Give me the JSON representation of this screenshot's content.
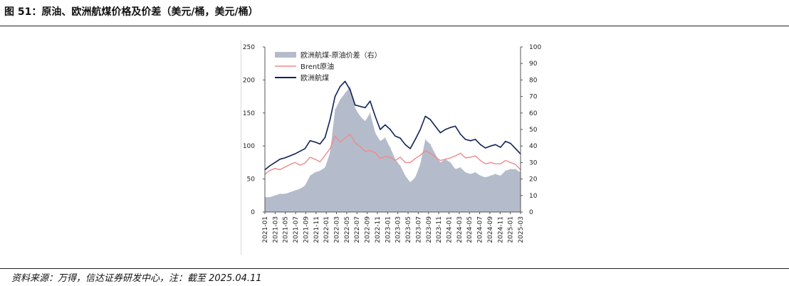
{
  "header": {
    "title": "图 51：原油、欧洲航煤价格及价差（美元/桶，美元/桶）"
  },
  "footer": {
    "source": "资料来源：万得，信达证券研发中心，注：截至 2025.04.11"
  },
  "chart_data": {
    "type": "line",
    "title": "原油、欧洲航煤价格及价差（美元/桶，美元/桶）",
    "left_axis": {
      "ylim": [
        0,
        250
      ],
      "ticks": [
        "0",
        "50",
        "100",
        "150",
        "200",
        "250"
      ]
    },
    "right_axis": {
      "ylim": [
        0,
        100
      ],
      "ticks": [
        "0",
        "10",
        "20",
        "30",
        "40",
        "50",
        "60",
        "70",
        "80",
        "90",
        "100"
      ]
    },
    "x_ticks": [
      "2021-01",
      "2021-03",
      "2021-05",
      "2021-07",
      "2021-09",
      "2021-11",
      "2022-01",
      "2022-03",
      "2022-05",
      "2022-07",
      "2022-09",
      "2022-11",
      "2023-01",
      "2023-03",
      "2023-05",
      "2023-07",
      "2023-09",
      "2023-11",
      "2024-01",
      "2024-03",
      "2024-05",
      "2024-07",
      "2024-09",
      "2024-11",
      "2025-01",
      "2025-03"
    ],
    "legend": [
      "欧洲航煤-原油价差（右）",
      "Brent原油",
      "欧洲航煤"
    ],
    "legend_position": "top-left",
    "colors": {
      "spread": "#b4bccb",
      "brent": "#f08a8a",
      "jet": "#0f2257"
    },
    "x": [
      "2021-01",
      "2021-02",
      "2021-03",
      "2021-04",
      "2021-05",
      "2021-06",
      "2021-07",
      "2021-08",
      "2021-09",
      "2021-10",
      "2021-11",
      "2021-12",
      "2022-01",
      "2022-02",
      "2022-03",
      "2022-04",
      "2022-05",
      "2022-06",
      "2022-07",
      "2022-08",
      "2022-09",
      "2022-10",
      "2022-11",
      "2022-12",
      "2023-01",
      "2023-02",
      "2023-03",
      "2023-04",
      "2023-05",
      "2023-06",
      "2023-07",
      "2023-08",
      "2023-09",
      "2023-10",
      "2023-11",
      "2023-12",
      "2024-01",
      "2024-02",
      "2024-03",
      "2024-04",
      "2024-05",
      "2024-06",
      "2024-07",
      "2024-08",
      "2024-09",
      "2024-10",
      "2024-11",
      "2024-12",
      "2025-01",
      "2025-02",
      "2025-03",
      "2025-04"
    ],
    "series": [
      {
        "name": "欧洲航煤-原油价差（右）",
        "axis": "right",
        "type": "area",
        "values": [
          9,
          9,
          10,
          11,
          11,
          12,
          13,
          14,
          16,
          22,
          24,
          25,
          27,
          36,
          62,
          68,
          72,
          76,
          63,
          58,
          55,
          60,
          48,
          43,
          45,
          39,
          32,
          28,
          22,
          18,
          21,
          29,
          44,
          41,
          35,
          30,
          32,
          30,
          26,
          27,
          24,
          23,
          24,
          22,
          21,
          22,
          23,
          22,
          25,
          26,
          26,
          24
        ]
      },
      {
        "name": "Brent原油",
        "axis": "left",
        "type": "line",
        "values": [
          57,
          63,
          66,
          64,
          68,
          72,
          75,
          71,
          74,
          83,
          80,
          76,
          86,
          96,
          115,
          106,
          112,
          118,
          105,
          99,
          92,
          93,
          90,
          81,
          84,
          83,
          78,
          83,
          75,
          75,
          81,
          86,
          93,
          89,
          83,
          78,
          80,
          82,
          85,
          89,
          82,
          83,
          85,
          78,
          73,
          75,
          73,
          73,
          78,
          75,
          72,
          64
        ]
      },
      {
        "name": "欧洲航煤",
        "axis": "left",
        "type": "line",
        "values": [
          64,
          70,
          75,
          80,
          82,
          85,
          88,
          92,
          96,
          108,
          106,
          103,
          113,
          140,
          175,
          190,
          198,
          185,
          162,
          160,
          158,
          168,
          145,
          125,
          132,
          125,
          115,
          112,
          102,
          96,
          110,
          125,
          145,
          140,
          130,
          120,
          125,
          128,
          130,
          118,
          110,
          108,
          110,
          102,
          97,
          100,
          102,
          98,
          107,
          104,
          96,
          88
        ]
      }
    ]
  }
}
